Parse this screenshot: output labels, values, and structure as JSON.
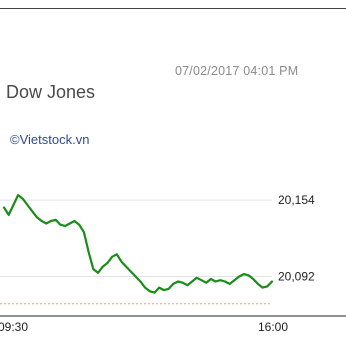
{
  "header": {
    "timestamp": "07/02/2017 04:01 PM",
    "title": "Dow Jones",
    "source": "©Vietstock.vn"
  },
  "chart_data": {
    "type": "line",
    "series": [
      {
        "values": [
          20148,
          20142,
          20150,
          20158,
          20155,
          20150,
          20145,
          20140,
          20137,
          20135,
          20137,
          20138,
          20134,
          20133,
          20135,
          20137,
          20134,
          20128,
          20112,
          20098,
          20095,
          20100,
          20103,
          20108,
          20110,
          20104,
          20100,
          20096,
          20092,
          20088,
          20083,
          20080,
          20079,
          20083,
          20081,
          20082,
          20086,
          20088,
          20087,
          20085,
          20088,
          20091,
          20089,
          20087,
          20090,
          20088,
          20089,
          20088,
          20086,
          20089,
          20092,
          20094,
          20093,
          20090,
          20086,
          20083,
          20084,
          20088
        ]
      }
    ],
    "x_start_label": "09:30",
    "x_end_label": "16:00",
    "y_tick_labels": [
      "20,154",
      "20,092"
    ],
    "y_ticks": [
      20154,
      20092
    ],
    "reference_line": 20070,
    "ylim": [
      20060,
      20180
    ],
    "colors": {
      "line": "#1a8c1a",
      "gridline": "#e3e3e3",
      "reference": "#f0b050",
      "axis": "#222222",
      "label": "#222222"
    }
  }
}
